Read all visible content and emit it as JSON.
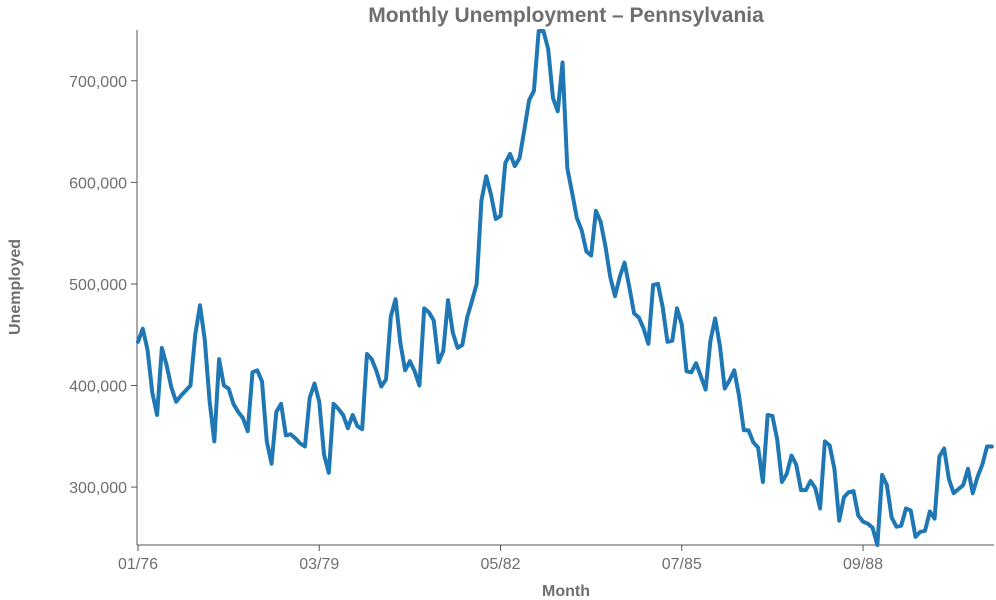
{
  "chart_data": {
    "type": "line",
    "title": "Monthly Unemployment – Pennsylvania",
    "xlabel": "Month",
    "ylabel": "Unemployed",
    "ylim": [
      243000,
      750000
    ],
    "yticks": [
      300000,
      400000,
      500000,
      600000,
      700000
    ],
    "ytick_labels": [
      "300,000",
      "400,000",
      "500,000",
      "600,000",
      "700,000"
    ],
    "xticks": [
      "01/76",
      "03/79",
      "05/82",
      "07/85",
      "09/88"
    ],
    "xtick_index": [
      0,
      38,
      76,
      114,
      152
    ],
    "x_start": "01/76",
    "grid": false,
    "legend": "none",
    "color": "#1f77b4",
    "series": [
      {
        "values": [
          443000,
          456000,
          435000,
          393000,
          371000,
          437000,
          420000,
          398000,
          384000,
          390000,
          395000,
          400000,
          450000,
          479000,
          445000,
          385000,
          345000,
          426000,
          400000,
          397000,
          382000,
          374000,
          368000,
          355000,
          413000,
          415000,
          404000,
          345000,
          323000,
          374000,
          382000,
          351000,
          352000,
          348000,
          343000,
          340000,
          388000,
          402000,
          384000,
          332000,
          314000,
          382000,
          377000,
          371000,
          358000,
          371000,
          360000,
          357000,
          431000,
          426000,
          414000,
          399000,
          406000,
          468000,
          485000,
          442000,
          415000,
          424000,
          414000,
          400000,
          476000,
          472000,
          464000,
          423000,
          434000,
          484000,
          452000,
          437000,
          440000,
          467000,
          483000,
          500000,
          582000,
          606000,
          588000,
          564000,
          567000,
          619000,
          628000,
          616000,
          624000,
          652000,
          681000,
          690000,
          749000,
          749000,
          731000,
          683000,
          670000,
          718000,
          614000,
          590000,
          565000,
          553000,
          532000,
          528000,
          572000,
          561000,
          537000,
          507000,
          488000,
          507000,
          521000,
          497000,
          471000,
          467000,
          456000,
          441000,
          499000,
          500000,
          477000,
          443000,
          444000,
          476000,
          460000,
          414000,
          413000,
          422000,
          409000,
          396000,
          444000,
          466000,
          439000,
          397000,
          405000,
          415000,
          390000,
          356000,
          356000,
          344000,
          339000,
          305000,
          371000,
          370000,
          347000,
          305000,
          313000,
          331000,
          322000,
          297000,
          297000,
          306000,
          299000,
          279000,
          345000,
          341000,
          318000,
          267000,
          290000,
          295000,
          296000,
          272000,
          266000,
          264000,
          260000,
          243000,
          312000,
          302000,
          270000,
          261000,
          262000,
          279000,
          277000,
          251000,
          256000,
          257000,
          276000,
          269000,
          330000,
          338000,
          308000,
          294000,
          298000,
          302000,
          318000,
          294000,
          310000,
          322000,
          340000,
          340000
        ]
      }
    ]
  }
}
